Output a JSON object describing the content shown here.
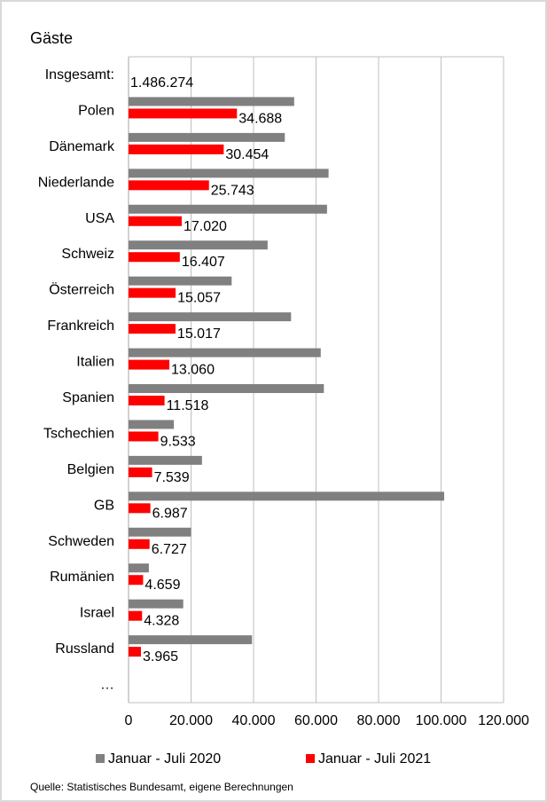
{
  "chart_data": {
    "type": "bar",
    "orientation": "horizontal",
    "title": "Gäste",
    "categories": [
      "Insgesamt:",
      "Polen",
      "Dänemark",
      "Niederlande",
      "USA",
      "Schweiz",
      "Österreich",
      "Frankreich",
      "Italien",
      "Spanien",
      "Tschechien",
      "Belgien",
      "GB",
      "Schweden",
      "Rumänien",
      "Israel",
      "Russland",
      "…"
    ],
    "series": [
      {
        "name": "Januar - Juli 2020",
        "color": "#808080",
        "values": [
          null,
          53000,
          50000,
          64000,
          63500,
          44500,
          33000,
          52000,
          61500,
          62500,
          14500,
          23500,
          101000,
          20000,
          6500,
          17500,
          39500,
          null
        ]
      },
      {
        "name": "Januar - Juli 2021",
        "color": "#ff0000",
        "values": [
          null,
          34688,
          30454,
          25743,
          17020,
          16407,
          15057,
          15017,
          13060,
          11518,
          9533,
          7539,
          6987,
          6727,
          4659,
          4328,
          3965,
          null
        ]
      }
    ],
    "data_labels": [
      "1.486.274",
      "34.688",
      "30.454",
      "25.743",
      "17.020",
      "16.407",
      "15.057",
      "15.017",
      "13.060",
      "11.518",
      "9.533",
      "7.539",
      "6.987",
      "6.727",
      "4.659",
      "4.328",
      "3.965",
      ""
    ],
    "x_ticks": [
      0,
      20000,
      40000,
      60000,
      80000,
      100000,
      120000
    ],
    "x_tick_labels": [
      "0",
      "20.000",
      "40.000",
      "60.000",
      "80.000",
      "100.000",
      "120.000"
    ],
    "xlim": [
      0,
      120000
    ],
    "grid": true,
    "legend_position": "bottom"
  },
  "source": "Quelle: Statistisches Bundesamt, eigene Berechnungen"
}
